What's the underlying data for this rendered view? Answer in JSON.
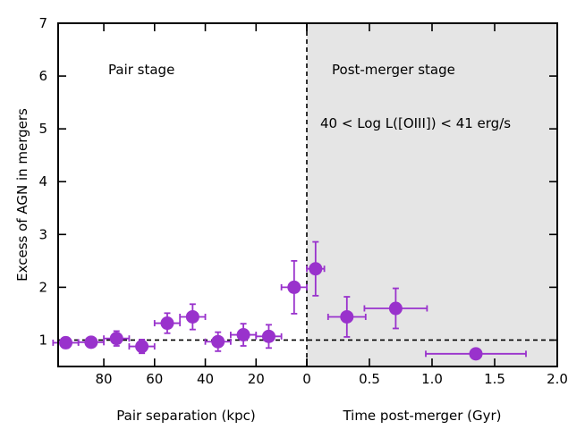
{
  "chart_data": {
    "type": "scatter",
    "ylabel": "Excess of AGN in mergers",
    "ylim": [
      0.5,
      7
    ],
    "yticks": [
      1,
      2,
      3,
      4,
      5,
      6,
      7
    ],
    "left_panel": {
      "label": "Pair stage",
      "xlabel": "Pair separation (kpc)",
      "xlim": [
        98,
        0
      ],
      "xticks": [
        80,
        60,
        40,
        20,
        0
      ],
      "background": "#ffffff",
      "points": [
        {
          "x": 95,
          "y": 0.95,
          "xerr": 5,
          "yerr": 0.1
        },
        {
          "x": 85,
          "y": 0.96,
          "xerr": 5,
          "yerr": 0.08
        },
        {
          "x": 75,
          "y": 1.03,
          "xerr": 5,
          "yerr": 0.14
        },
        {
          "x": 65,
          "y": 0.88,
          "xerr": 5,
          "yerr": 0.13
        },
        {
          "x": 55,
          "y": 1.32,
          "xerr": 5,
          "yerr": 0.19
        },
        {
          "x": 45,
          "y": 1.44,
          "xerr": 5,
          "yerr": 0.24
        },
        {
          "x": 35,
          "y": 0.97,
          "xerr": 5,
          "yerr": 0.18
        },
        {
          "x": 25,
          "y": 1.1,
          "xerr": 5,
          "yerr": 0.21
        },
        {
          "x": 15,
          "y": 1.07,
          "xerr": 5,
          "yerr": 0.22
        },
        {
          "x": 5,
          "y": 2.0,
          "xerr": 5,
          "yerr": 0.5
        }
      ]
    },
    "right_panel": {
      "label": "Post-merger stage",
      "xlabel": "Time post-merger (Gyr)",
      "xlim": [
        0,
        2.0
      ],
      "xticks": [
        0.0,
        0.5,
        1.0,
        1.5,
        2.0
      ],
      "tick_labels": [
        "0.5",
        "1.0",
        "1.5",
        "2.0"
      ],
      "background": "#e5e5e5",
      "annotation": "40 < Log L([OIII]) < 41 erg/s",
      "points": [
        {
          "x": 0.07,
          "y": 2.35,
          "xerr": 0.07,
          "yerr": 0.51
        },
        {
          "x": 0.32,
          "y": 1.44,
          "xerr": 0.15,
          "yerr": 0.38
        },
        {
          "x": 0.71,
          "y": 1.6,
          "xerr": 0.25,
          "yerr": 0.38
        },
        {
          "x": 1.35,
          "y": 0.74,
          "xerr": 0.4,
          "yerr": 0.0
        }
      ]
    },
    "reference_line_y": 1,
    "colors": {
      "points": "#9932cc",
      "annotation": "#9932cc",
      "reference_line": "#000000"
    }
  }
}
